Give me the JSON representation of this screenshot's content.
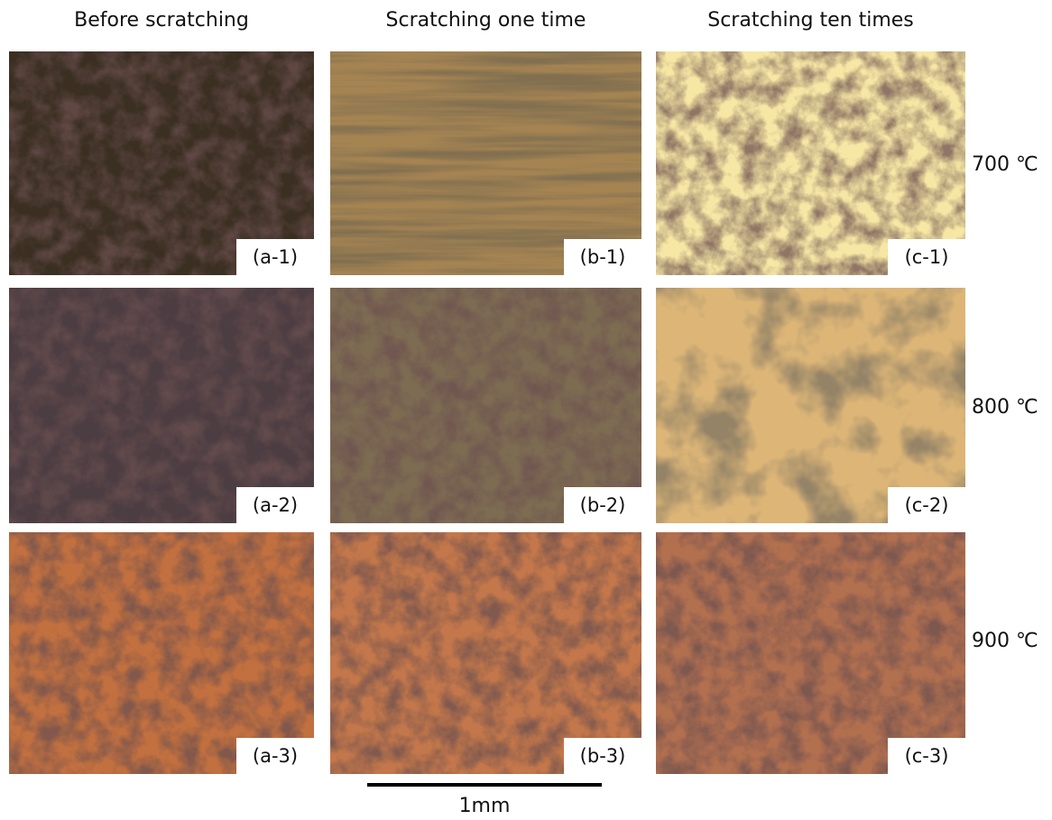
{
  "columns": [
    "Before scratching",
    "Scratching one time",
    "Scratching ten times"
  ],
  "rows": [
    "700 ℃",
    "800 ℃",
    "900 ℃"
  ],
  "panels": [
    [
      "(a-1)",
      "(b-1)",
      "(c-1)"
    ],
    [
      "(a-2)",
      "(b-2)",
      "(c-2)"
    ],
    [
      "(a-3)",
      "(b-3)",
      "(c-3)"
    ]
  ],
  "scale_bar": "1mm"
}
